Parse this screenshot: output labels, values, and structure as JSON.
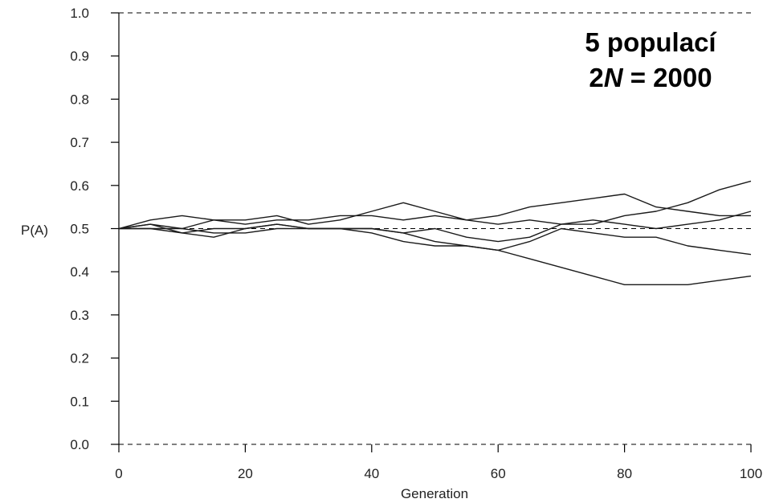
{
  "chart_data": {
    "type": "line",
    "xlabel": "Generation",
    "ylabel": "P(A)",
    "xlim": [
      0,
      100
    ],
    "ylim": [
      0.0,
      1.0
    ],
    "x_ticks": [
      "0",
      "20",
      "40",
      "60",
      "80",
      "100"
    ],
    "y_ticks": [
      "0.0",
      "0.1",
      "0.2",
      "0.3",
      "0.4",
      "0.5",
      "0.6",
      "0.7",
      "0.8",
      "0.9",
      "1.0"
    ],
    "reference_lines": [
      0.0,
      0.5,
      1.0
    ],
    "annotation": {
      "line1": "5 populací",
      "line2_prefix": "2",
      "line2_italic": "N",
      "line2_suffix": " = 2000"
    },
    "x": [
      0,
      5,
      10,
      15,
      20,
      25,
      30,
      35,
      40,
      45,
      50,
      55,
      60,
      65,
      70,
      75,
      80,
      85,
      90,
      95,
      100
    ],
    "series": [
      {
        "values": [
          0.5,
          0.52,
          0.53,
          0.52,
          0.52,
          0.53,
          0.51,
          0.52,
          0.54,
          0.56,
          0.54,
          0.52,
          0.53,
          0.55,
          0.56,
          0.57,
          0.58,
          0.55,
          0.54,
          0.53,
          0.53
        ]
      },
      {
        "values": [
          0.5,
          0.51,
          0.5,
          0.52,
          0.51,
          0.52,
          0.52,
          0.53,
          0.53,
          0.52,
          0.53,
          0.52,
          0.51,
          0.52,
          0.51,
          0.51,
          0.53,
          0.54,
          0.56,
          0.59,
          0.61
        ]
      },
      {
        "values": [
          0.5,
          0.51,
          0.49,
          0.5,
          0.5,
          0.51,
          0.5,
          0.5,
          0.5,
          0.49,
          0.47,
          0.46,
          0.45,
          0.43,
          0.41,
          0.39,
          0.37,
          0.37,
          0.37,
          0.38,
          0.39
        ]
      },
      {
        "values": [
          0.5,
          0.5,
          0.49,
          0.48,
          0.5,
          0.51,
          0.5,
          0.5,
          0.49,
          0.47,
          0.46,
          0.46,
          0.45,
          0.47,
          0.5,
          0.49,
          0.48,
          0.48,
          0.46,
          0.45,
          0.44
        ]
      },
      {
        "values": [
          0.5,
          0.5,
          0.5,
          0.49,
          0.49,
          0.5,
          0.5,
          0.5,
          0.5,
          0.49,
          0.5,
          0.48,
          0.47,
          0.48,
          0.51,
          0.52,
          0.51,
          0.5,
          0.51,
          0.52,
          0.54
        ]
      }
    ]
  }
}
